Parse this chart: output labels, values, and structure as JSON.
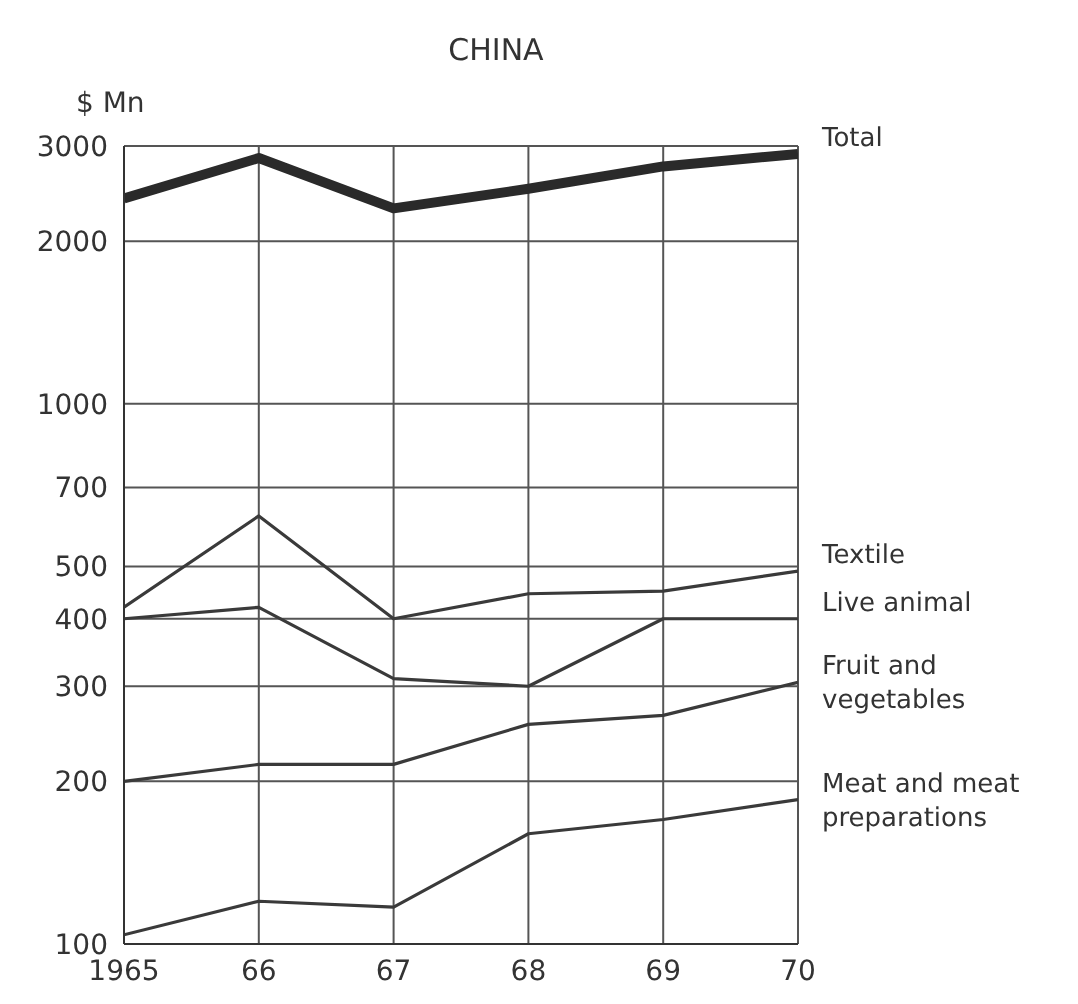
{
  "chart_data": {
    "type": "line",
    "title": "CHINA",
    "ylabel": "$ Mn",
    "x": [
      1965,
      1966,
      1967,
      1968,
      1969,
      1970
    ],
    "xlim": [
      1965,
      1970
    ],
    "xticks": [
      1965,
      {
        "value": 1966,
        "label": "66"
      },
      {
        "value": 1967,
        "label": "67"
      },
      {
        "value": 1968,
        "label": "68"
      },
      {
        "value": 1969,
        "label": "69"
      },
      {
        "value": 1970,
        "label": "70"
      }
    ],
    "log": "y",
    "ylim": [
      100,
      3000
    ],
    "yticks": [
      100,
      200,
      300,
      400,
      500,
      700,
      1000,
      2000,
      3000
    ],
    "grid": true,
    "marker": "none",
    "line_style": "solid",
    "series": [
      {
        "name": "Total",
        "color": "#2a2a2a",
        "values": [
          2400,
          2850,
          2300,
          2500,
          2750,
          2900
        ]
      },
      {
        "name": "Textile",
        "color": "#3a3a3a",
        "values": [
          420,
          620,
          400,
          445,
          450,
          490
        ]
      },
      {
        "name": "Live animal",
        "color": "#3a3a3a",
        "values": [
          400,
          420,
          310,
          300,
          400,
          400
        ]
      },
      {
        "name": "Fruit and vegetables",
        "color": "#3a3a3a",
        "values": [
          200,
          215,
          215,
          255,
          265,
          305
        ]
      },
      {
        "name": "Meat and meat preparations",
        "color": "#3a3a3a",
        "values": [
          104,
          120,
          117,
          160,
          170,
          185
        ]
      }
    ]
  }
}
